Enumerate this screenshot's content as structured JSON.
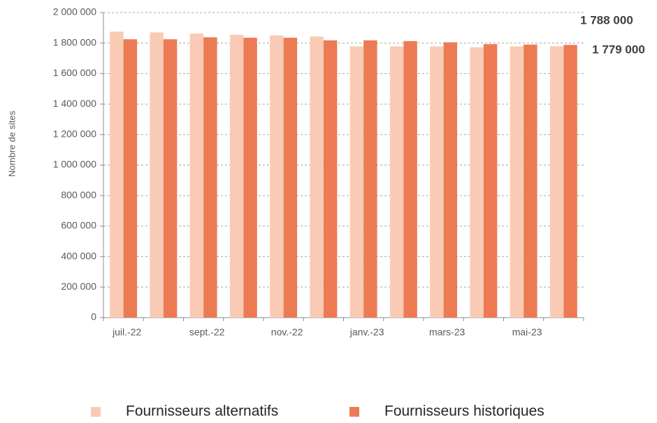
{
  "chart_data": {
    "type": "bar",
    "y_label": "Nombre de sites",
    "categories": [
      "juil.-22",
      null,
      "sept.-22",
      null,
      "nov.-22",
      null,
      "janv.-23",
      null,
      "mars-23",
      null,
      "mai-23",
      null
    ],
    "series": [
      {
        "name": "Fournisseurs alternatifs",
        "color": "#f9cbb4",
        "values": [
          1875000,
          1870000,
          1862000,
          1855000,
          1850000,
          1843000,
          1778000,
          1778000,
          1778000,
          1772000,
          1778000,
          1779000
        ],
        "value_labels": [
          null,
          null,
          null,
          null,
          null,
          null,
          null,
          null,
          null,
          null,
          null,
          "1 779 000"
        ]
      },
      {
        "name": "Fournisseurs historiques",
        "color": "#ec7b53",
        "values": [
          1825000,
          1825000,
          1838000,
          1835000,
          1835000,
          1818000,
          1818000,
          1813000,
          1805000,
          1793000,
          1790000,
          1788000
        ],
        "value_labels": [
          null,
          null,
          null,
          null,
          null,
          null,
          null,
          null,
          null,
          null,
          null,
          "1 788 000"
        ]
      }
    ],
    "ylim": [
      0,
      2000000
    ],
    "yticks": [
      0,
      {
        "value": 200000,
        "label": "200 000"
      },
      {
        "value": 400000,
        "label": "400 000"
      },
      {
        "value": 600000,
        "label": "600 000"
      },
      {
        "value": 800000,
        "label": "800 000"
      },
      {
        "value": 1000000,
        "label": "1 000 000"
      },
      {
        "value": 1200000,
        "label": "1 200 000"
      },
      {
        "value": 1400000,
        "label": "1 400 000"
      },
      {
        "value": 1600000,
        "label": "1 600 000"
      },
      {
        "value": 1800000,
        "label": "1 800 000"
      },
      {
        "value": 2000000,
        "label": "2 000 000"
      }
    ],
    "grid": true
  }
}
